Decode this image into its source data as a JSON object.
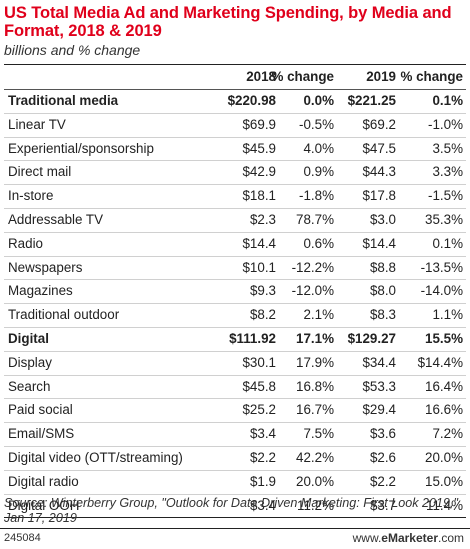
{
  "title": "US Total Media Ad and Marketing Spending, by Media and Format, 2018 & 2019",
  "subtitle": "billions and % change",
  "source": "Source: Winterberry Group, \"Outlook for Data Driven Marketing: First Look 2019,\" Jan 17, 2019",
  "footer_id": "245084",
  "brand": {
    "prefix": "www.",
    "name": "eMarketer",
    "suffix": ".com"
  },
  "chart_data": {
    "type": "table",
    "columns": [
      "",
      "2018",
      "% change",
      "2019",
      "% change"
    ],
    "rows": [
      {
        "label": "Traditional media",
        "section": true,
        "v2018": "$220.98",
        "c2018": "0.0%",
        "v2019": "$221.25",
        "c2019": "0.1%"
      },
      {
        "label": "Linear TV",
        "v2018": "$69.9",
        "c2018": "-0.5%",
        "v2019": "$69.2",
        "c2019": "-1.0%"
      },
      {
        "label": "Experiential/sponsorship",
        "v2018": "$45.9",
        "c2018": "4.0%",
        "v2019": "$47.5",
        "c2019": "3.5%"
      },
      {
        "label": "Direct mail",
        "v2018": "$42.9",
        "c2018": "0.9%",
        "v2019": "$44.3",
        "c2019": "3.3%"
      },
      {
        "label": "In-store",
        "v2018": "$18.1",
        "c2018": "-1.8%",
        "v2019": "$17.8",
        "c2019": "-1.5%"
      },
      {
        "label": "Addressable TV",
        "v2018": "$2.3",
        "c2018": "78.7%",
        "v2019": "$3.0",
        "c2019": "35.3%"
      },
      {
        "label": "Radio",
        "v2018": "$14.4",
        "c2018": "0.6%",
        "v2019": "$14.4",
        "c2019": "0.1%"
      },
      {
        "label": "Newspapers",
        "v2018": "$10.1",
        "c2018": "-12.2%",
        "v2019": "$8.8",
        "c2019": "-13.5%"
      },
      {
        "label": "Magazines",
        "v2018": "$9.3",
        "c2018": "-12.0%",
        "v2019": "$8.0",
        "c2019": "-14.0%"
      },
      {
        "label": "Traditional outdoor",
        "v2018": "$8.2",
        "c2018": "2.1%",
        "v2019": "$8.3",
        "c2019": "1.1%"
      },
      {
        "label": "Digital",
        "section": true,
        "v2018": "$111.92",
        "c2018": "17.1%",
        "v2019": "$129.27",
        "c2019": "15.5%"
      },
      {
        "label": "Display",
        "v2018": "$30.1",
        "c2018": "17.9%",
        "v2019": "$34.4",
        "c2019": "$14.4%"
      },
      {
        "label": "Search",
        "v2018": "$45.8",
        "c2018": "16.8%",
        "v2019": "$53.3",
        "c2019": "16.4%"
      },
      {
        "label": "Paid social",
        "v2018": "$25.2",
        "c2018": "16.7%",
        "v2019": "$29.4",
        "c2019": "16.6%"
      },
      {
        "label": "Email/SMS",
        "v2018": "$3.4",
        "c2018": "7.5%",
        "v2019": "$3.6",
        "c2019": "7.2%"
      },
      {
        "label": "Digital video (OTT/streaming)",
        "v2018": "$2.2",
        "c2018": "42.2%",
        "v2019": "$2.6",
        "c2019": "20.0%"
      },
      {
        "label": "Digital radio",
        "v2018": "$1.9",
        "c2018": "20.0%",
        "v2019": "$2.2",
        "c2019": "15.0%"
      },
      {
        "label": "Digital OOH",
        "v2018": "$3.4",
        "c2018": "11.2%",
        "v2019": "$3.7",
        "c2019": "11.4%"
      }
    ]
  }
}
